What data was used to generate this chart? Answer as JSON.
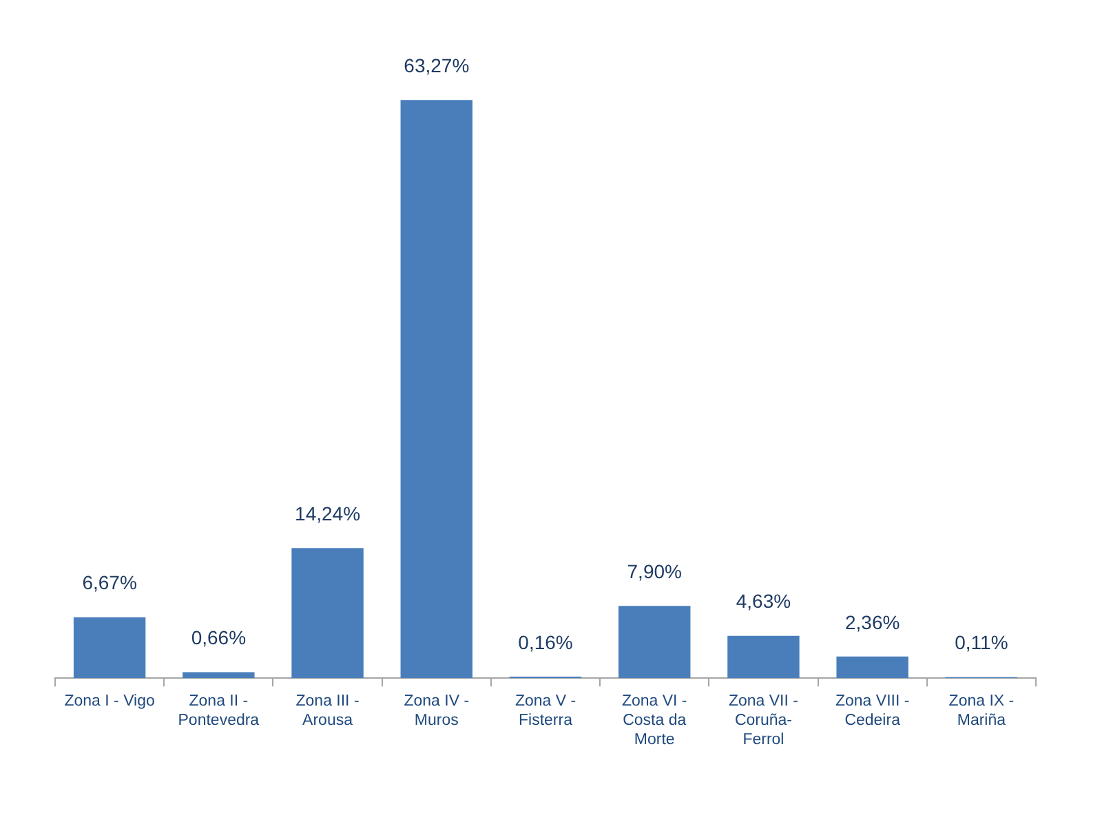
{
  "chart_data": {
    "type": "bar",
    "categories": [
      "Zona I - Vigo",
      "Zona II - Pontevedra",
      "Zona III - Arousa",
      "Zona IV - Muros",
      "Zona V - Fisterra",
      "Zona VI - Costa da Morte",
      "Zona VII - Coruña-Ferrol",
      "Zona VIII - Cedeira",
      "Zona IX - Mariña"
    ],
    "values": [
      6.67,
      0.66,
      14.24,
      63.27,
      0.16,
      7.9,
      4.63,
      2.36,
      0.11
    ],
    "value_labels": [
      "6,67%",
      "0,66%",
      "14,24%",
      "63,27%",
      "0,16%",
      "7,90%",
      "4,63%",
      "2,36%",
      "0,11%"
    ],
    "color": "#4a7ebb",
    "tick_labels": "x"
  }
}
